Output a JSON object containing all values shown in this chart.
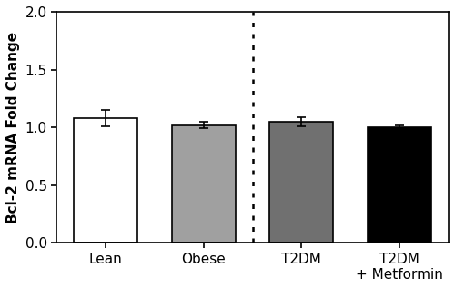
{
  "categories": [
    "Lean",
    "Obese",
    "T2DM",
    "T2DM\n+ Metformin"
  ],
  "values": [
    1.08,
    1.02,
    1.05,
    1.0
  ],
  "errors": [
    0.07,
    0.03,
    0.04,
    0.02
  ],
  "bar_colors": [
    "white",
    "#a0a0a0",
    "#707070",
    "black"
  ],
  "bar_edgecolors": [
    "black",
    "black",
    "black",
    "black"
  ],
  "ylabel": "Bcl-2 mRNA Fold Change",
  "ylim": [
    0.0,
    2.0
  ],
  "yticks": [
    0.0,
    0.5,
    1.0,
    1.5,
    2.0
  ],
  "x_positions": [
    0,
    1,
    2,
    3
  ],
  "dotted_line_x": 1.5,
  "bar_width": 0.65,
  "xlim": [
    -0.5,
    3.5
  ],
  "figsize": [
    5.0,
    3.17
  ],
  "dpi": 100
}
